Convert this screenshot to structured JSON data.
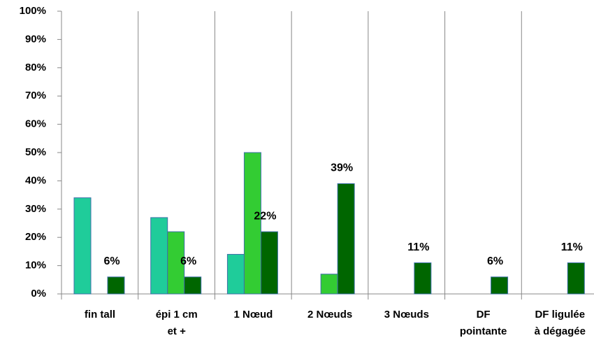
{
  "chart_data": {
    "type": "bar",
    "categories": [
      "fin tall",
      "épi 1 cm\net +",
      "1 Nœud",
      "2 Nœuds",
      "3 Nœuds",
      "DF\npointante",
      "DF ligulée\nà dégagée"
    ],
    "series": [
      {
        "color": "#1fcc9a",
        "values": [
          34,
          27,
          14,
          null,
          null,
          null,
          null
        ]
      },
      {
        "color": "#33cc33",
        "values": [
          null,
          22,
          50,
          7,
          null,
          null,
          null
        ]
      },
      {
        "color": "#006600",
        "values": [
          6,
          6,
          22,
          39,
          11,
          6,
          11
        ],
        "value_labels": [
          "6%",
          "6%",
          "22%",
          "39%",
          "11%",
          "6%",
          "11%"
        ]
      }
    ],
    "ylim": [
      0,
      100
    ],
    "yticks": [
      {
        "value": 0,
        "label": "0%"
      },
      {
        "value": 10,
        "label": "10%"
      },
      {
        "value": 20,
        "label": "20%"
      },
      {
        "value": 30,
        "label": "30%"
      },
      {
        "value": 40,
        "label": "40%"
      },
      {
        "value": 50,
        "label": "50%"
      },
      {
        "value": 60,
        "label": "60%"
      },
      {
        "value": 70,
        "label": "70%"
      },
      {
        "value": 80,
        "label": "80%"
      },
      {
        "value": 90,
        "label": "90%"
      },
      {
        "value": 100,
        "label": "100%"
      }
    ],
    "grid": false
  }
}
